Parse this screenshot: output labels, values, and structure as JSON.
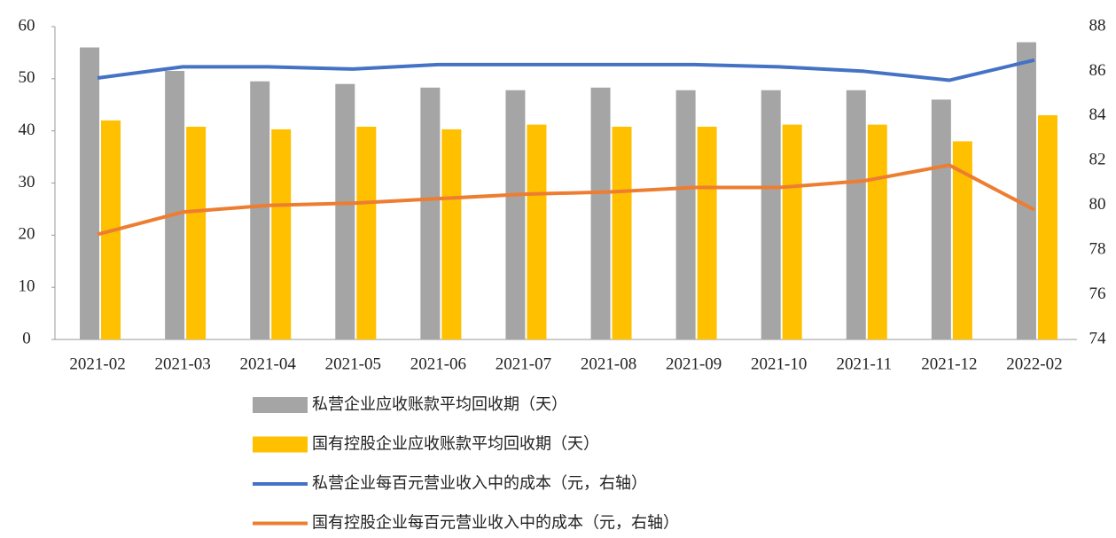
{
  "chart_data": {
    "type": "bar_line",
    "categories": [
      "2021-02",
      "2021-03",
      "2021-04",
      "2021-05",
      "2021-06",
      "2021-07",
      "2021-08",
      "2021-09",
      "2021-10",
      "2021-11",
      "2021-12",
      "2022-02"
    ],
    "series": [
      {
        "name": "私营企业应收账款平均回收期（天）",
        "type": "bar",
        "color": "#a5a5a5",
        "values": [
          56,
          51.5,
          49.5,
          49,
          48.3,
          47.8,
          48.3,
          47.8,
          47.8,
          47.8,
          46,
          57
        ]
      },
      {
        "name": "国有控股企业应收账款平均回收期（天）",
        "type": "bar",
        "color": "#ffc000",
        "values": [
          42,
          40.8,
          40.3,
          40.8,
          40.3,
          41.2,
          40.8,
          40.8,
          41.2,
          41.2,
          38,
          43
        ]
      },
      {
        "name": "私营企业每百元营业收入中的成本（元，右轴）",
        "type": "line",
        "axis": "y2",
        "color": "#4472c4",
        "values": [
          85.7,
          86.2,
          86.2,
          86.1,
          86.3,
          86.3,
          86.3,
          86.3,
          86.2,
          86.0,
          85.6,
          86.5
        ]
      },
      {
        "name": "国有控股企业每百元营业收入中的成本（元，右轴）",
        "type": "line",
        "axis": "y2",
        "color": "#ed7d31",
        "values": [
          78.7,
          79.7,
          80.0,
          80.1,
          80.3,
          80.5,
          80.6,
          80.8,
          80.8,
          81.1,
          81.8,
          79.8
        ]
      }
    ],
    "ylim": [
      0,
      60
    ],
    "yticks": [
      0,
      10,
      20,
      30,
      40,
      50,
      60
    ],
    "y2lim": [
      74,
      88
    ],
    "y2ticks": [
      74,
      76,
      78,
      80,
      82,
      84,
      86,
      88
    ]
  }
}
